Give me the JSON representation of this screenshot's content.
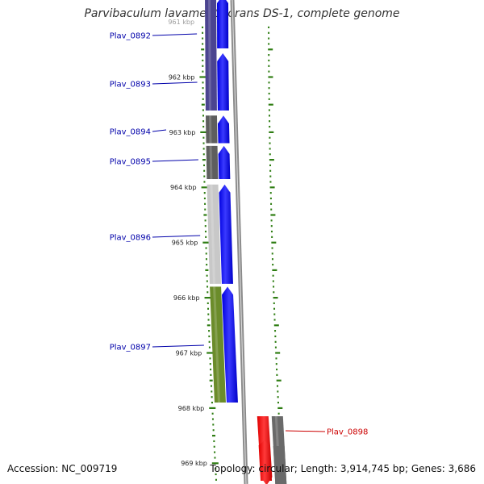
{
  "title": "Parvibaculum lavamentivorans DS-1, complete genome",
  "accession": "Accession: NC_009719",
  "topology": "Topology: circular; Length: 3,914,745 bp; Genes: 3,686",
  "colors": {
    "plus_strand": "#0000ff",
    "minus_strand": "#ff0000",
    "label_plus": "#0000aa",
    "label_minus": "#cc0000",
    "tick": "#2e7d12",
    "backbone": "#8a8a8a"
  },
  "ticks": [
    {
      "kbp": 961,
      "label": "961 kbp"
    },
    {
      "kbp": 962,
      "label": "962 kbp"
    },
    {
      "kbp": 963,
      "label": "963 kbp"
    },
    {
      "kbp": 964,
      "label": "964 kbp"
    },
    {
      "kbp": 965,
      "label": "965 kbp"
    },
    {
      "kbp": 966,
      "label": "966 kbp"
    },
    {
      "kbp": 967,
      "label": "967 kbp"
    },
    {
      "kbp": 968,
      "label": "968 kbp"
    },
    {
      "kbp": 969,
      "label": "969 kbp"
    }
  ],
  "genes": [
    {
      "name": "Plav_0892",
      "strand": "+",
      "start_kbp": 960.9,
      "end_kbp": 962.6,
      "cog_color": "#4b4490"
    },
    {
      "name": "Plav_0893",
      "strand": "+",
      "start_kbp": 962.6,
      "end_kbp": 962.6,
      "cog_color": "#4b4490"
    },
    {
      "name": "Plav_0894",
      "strand": "+",
      "start_kbp": 962.7,
      "end_kbp": 963.2,
      "cog_color": "#5e5e5e"
    },
    {
      "name": "Plav_0895",
      "strand": "+",
      "start_kbp": 963.25,
      "end_kbp": 963.85,
      "cog_color": "#5e5e5e"
    },
    {
      "name": "Plav_0896",
      "strand": "+",
      "start_kbp": 963.95,
      "end_kbp": 965.75,
      "cog_color": "#c8c8c8"
    },
    {
      "name": "Plav_0897",
      "strand": "+",
      "start_kbp": 965.8,
      "end_kbp": 967.9,
      "cog_color": "#6b8c2a"
    },
    {
      "name": "Plav_0898",
      "strand": "-",
      "start_kbp": 968.15,
      "end_kbp": 969.4,
      "cog_color": "#6a6a6a"
    }
  ]
}
